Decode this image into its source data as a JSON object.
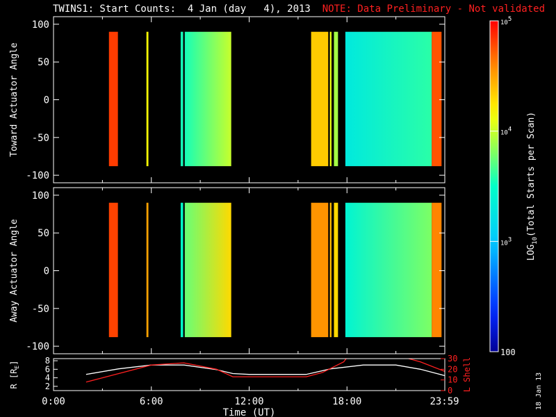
{
  "title": {
    "main": "TWINS1: Start Counts:  4 Jan (day   4), 2013",
    "note": "NOTE: Data Preliminary - Not validated"
  },
  "date_stamp": "18 Jan 13",
  "chart_data": [
    {
      "type": "heatmap",
      "ylabel": "Toward Actuator Angle",
      "ylim": [
        -110,
        110
      ],
      "yticks": [
        -100,
        -50,
        0,
        50,
        100
      ],
      "x_unit": "hours UT",
      "xlim": [
        0,
        24
      ],
      "bins_y": [
        -88,
        90
      ],
      "segments": [
        {
          "start": 3.4,
          "end": 3.95,
          "level": 4.82
        },
        {
          "start": 5.7,
          "end": 5.82,
          "level": 4.15
        },
        {
          "start": 7.8,
          "end": 7.95,
          "level": 3.55
        },
        {
          "start": 8.05,
          "end": 10.9,
          "level": 3.55,
          "grad_to": 4.0
        },
        {
          "start": 15.8,
          "end": 16.85,
          "level": 4.35
        },
        {
          "start": 16.95,
          "end": 17.05,
          "level": 4.1
        },
        {
          "start": 17.2,
          "end": 17.45,
          "level": 3.9
        },
        {
          "start": 17.9,
          "end": 23.2,
          "level": 3.3,
          "grad_to": 3.6
        },
        {
          "start": 23.2,
          "end": 23.8,
          "level": 4.75
        }
      ]
    },
    {
      "type": "heatmap",
      "ylabel": "Away Actuator Angle",
      "ylim": [
        -110,
        110
      ],
      "yticks": [
        -100,
        -50,
        0,
        50,
        100
      ],
      "x_unit": "hours UT",
      "xlim": [
        0,
        24
      ],
      "bins_y": [
        -88,
        90
      ],
      "segments": [
        {
          "start": 3.4,
          "end": 3.95,
          "level": 4.8
        },
        {
          "start": 5.7,
          "end": 5.82,
          "level": 4.5
        },
        {
          "start": 7.8,
          "end": 7.95,
          "level": 3.5
        },
        {
          "start": 8.05,
          "end": 10.9,
          "level": 3.75,
          "grad_to": 4.3
        },
        {
          "start": 15.8,
          "end": 16.85,
          "level": 4.55
        },
        {
          "start": 16.95,
          "end": 17.05,
          "level": 4.4
        },
        {
          "start": 17.2,
          "end": 17.45,
          "level": 4.3
        },
        {
          "start": 17.9,
          "end": 23.2,
          "level": 3.4,
          "grad_to": 3.8
        },
        {
          "start": 23.2,
          "end": 23.8,
          "level": 4.6
        }
      ]
    },
    {
      "type": "line",
      "xlabel": "Time (UT)",
      "ylabel_left": "R [R",
      "ylabel_left_sub": "E",
      "ylabel_left_end": "]",
      "ylabel_right": "L Shell",
      "xlim": [
        0,
        24
      ],
      "xticks": [
        "0:00",
        "6:00",
        "12:00",
        "18:00",
        "23:59"
      ],
      "xtick_values": [
        0,
        6,
        12,
        18,
        23.98
      ],
      "left_ylim": [
        1,
        8.5
      ],
      "left_yticks": [
        2,
        4,
        6,
        8
      ],
      "right_ylim": [
        0,
        30
      ],
      "right_yticks": [
        0,
        10,
        20,
        30
      ],
      "series": [
        {
          "axis": "left",
          "color": "#ffffff",
          "x": [
            2,
            4,
            6,
            8,
            10,
            11,
            12,
            13,
            15.5,
            17,
            19,
            21,
            22.5,
            24
          ],
          "y": [
            4.8,
            6.1,
            7.0,
            7.0,
            5.9,
            5.0,
            4.8,
            4.8,
            4.8,
            6.1,
            7.0,
            7.0,
            6.0,
            4.5
          ]
        },
        {
          "axis": "right",
          "color": "#ff2020",
          "x": [
            2,
            4,
            6,
            8,
            10,
            11,
            12,
            15.5,
            16.5,
            17.8,
            18.1
          ],
          "y": [
            8,
            16,
            24,
            26,
            20,
            13,
            13,
            13,
            17,
            27,
            33
          ]
        },
        {
          "axis": "right",
          "color": "#ff2020",
          "x": [
            21.3,
            22.5,
            24
          ],
          "y": [
            32,
            27,
            18
          ]
        }
      ]
    }
  ],
  "colorbar": {
    "label_prefix": "LOG",
    "label_sub": "10",
    "label_suffix": "(Total Starts per Scan)",
    "min_log": 2,
    "max_log": 5,
    "ticks": [
      {
        "log": 5,
        "base": "10",
        "exp": "5"
      },
      {
        "log": 4,
        "base": "10",
        "exp": "4"
      },
      {
        "log": 3,
        "base": "10",
        "exp": "3"
      },
      {
        "log": 2,
        "text": "100"
      }
    ]
  }
}
